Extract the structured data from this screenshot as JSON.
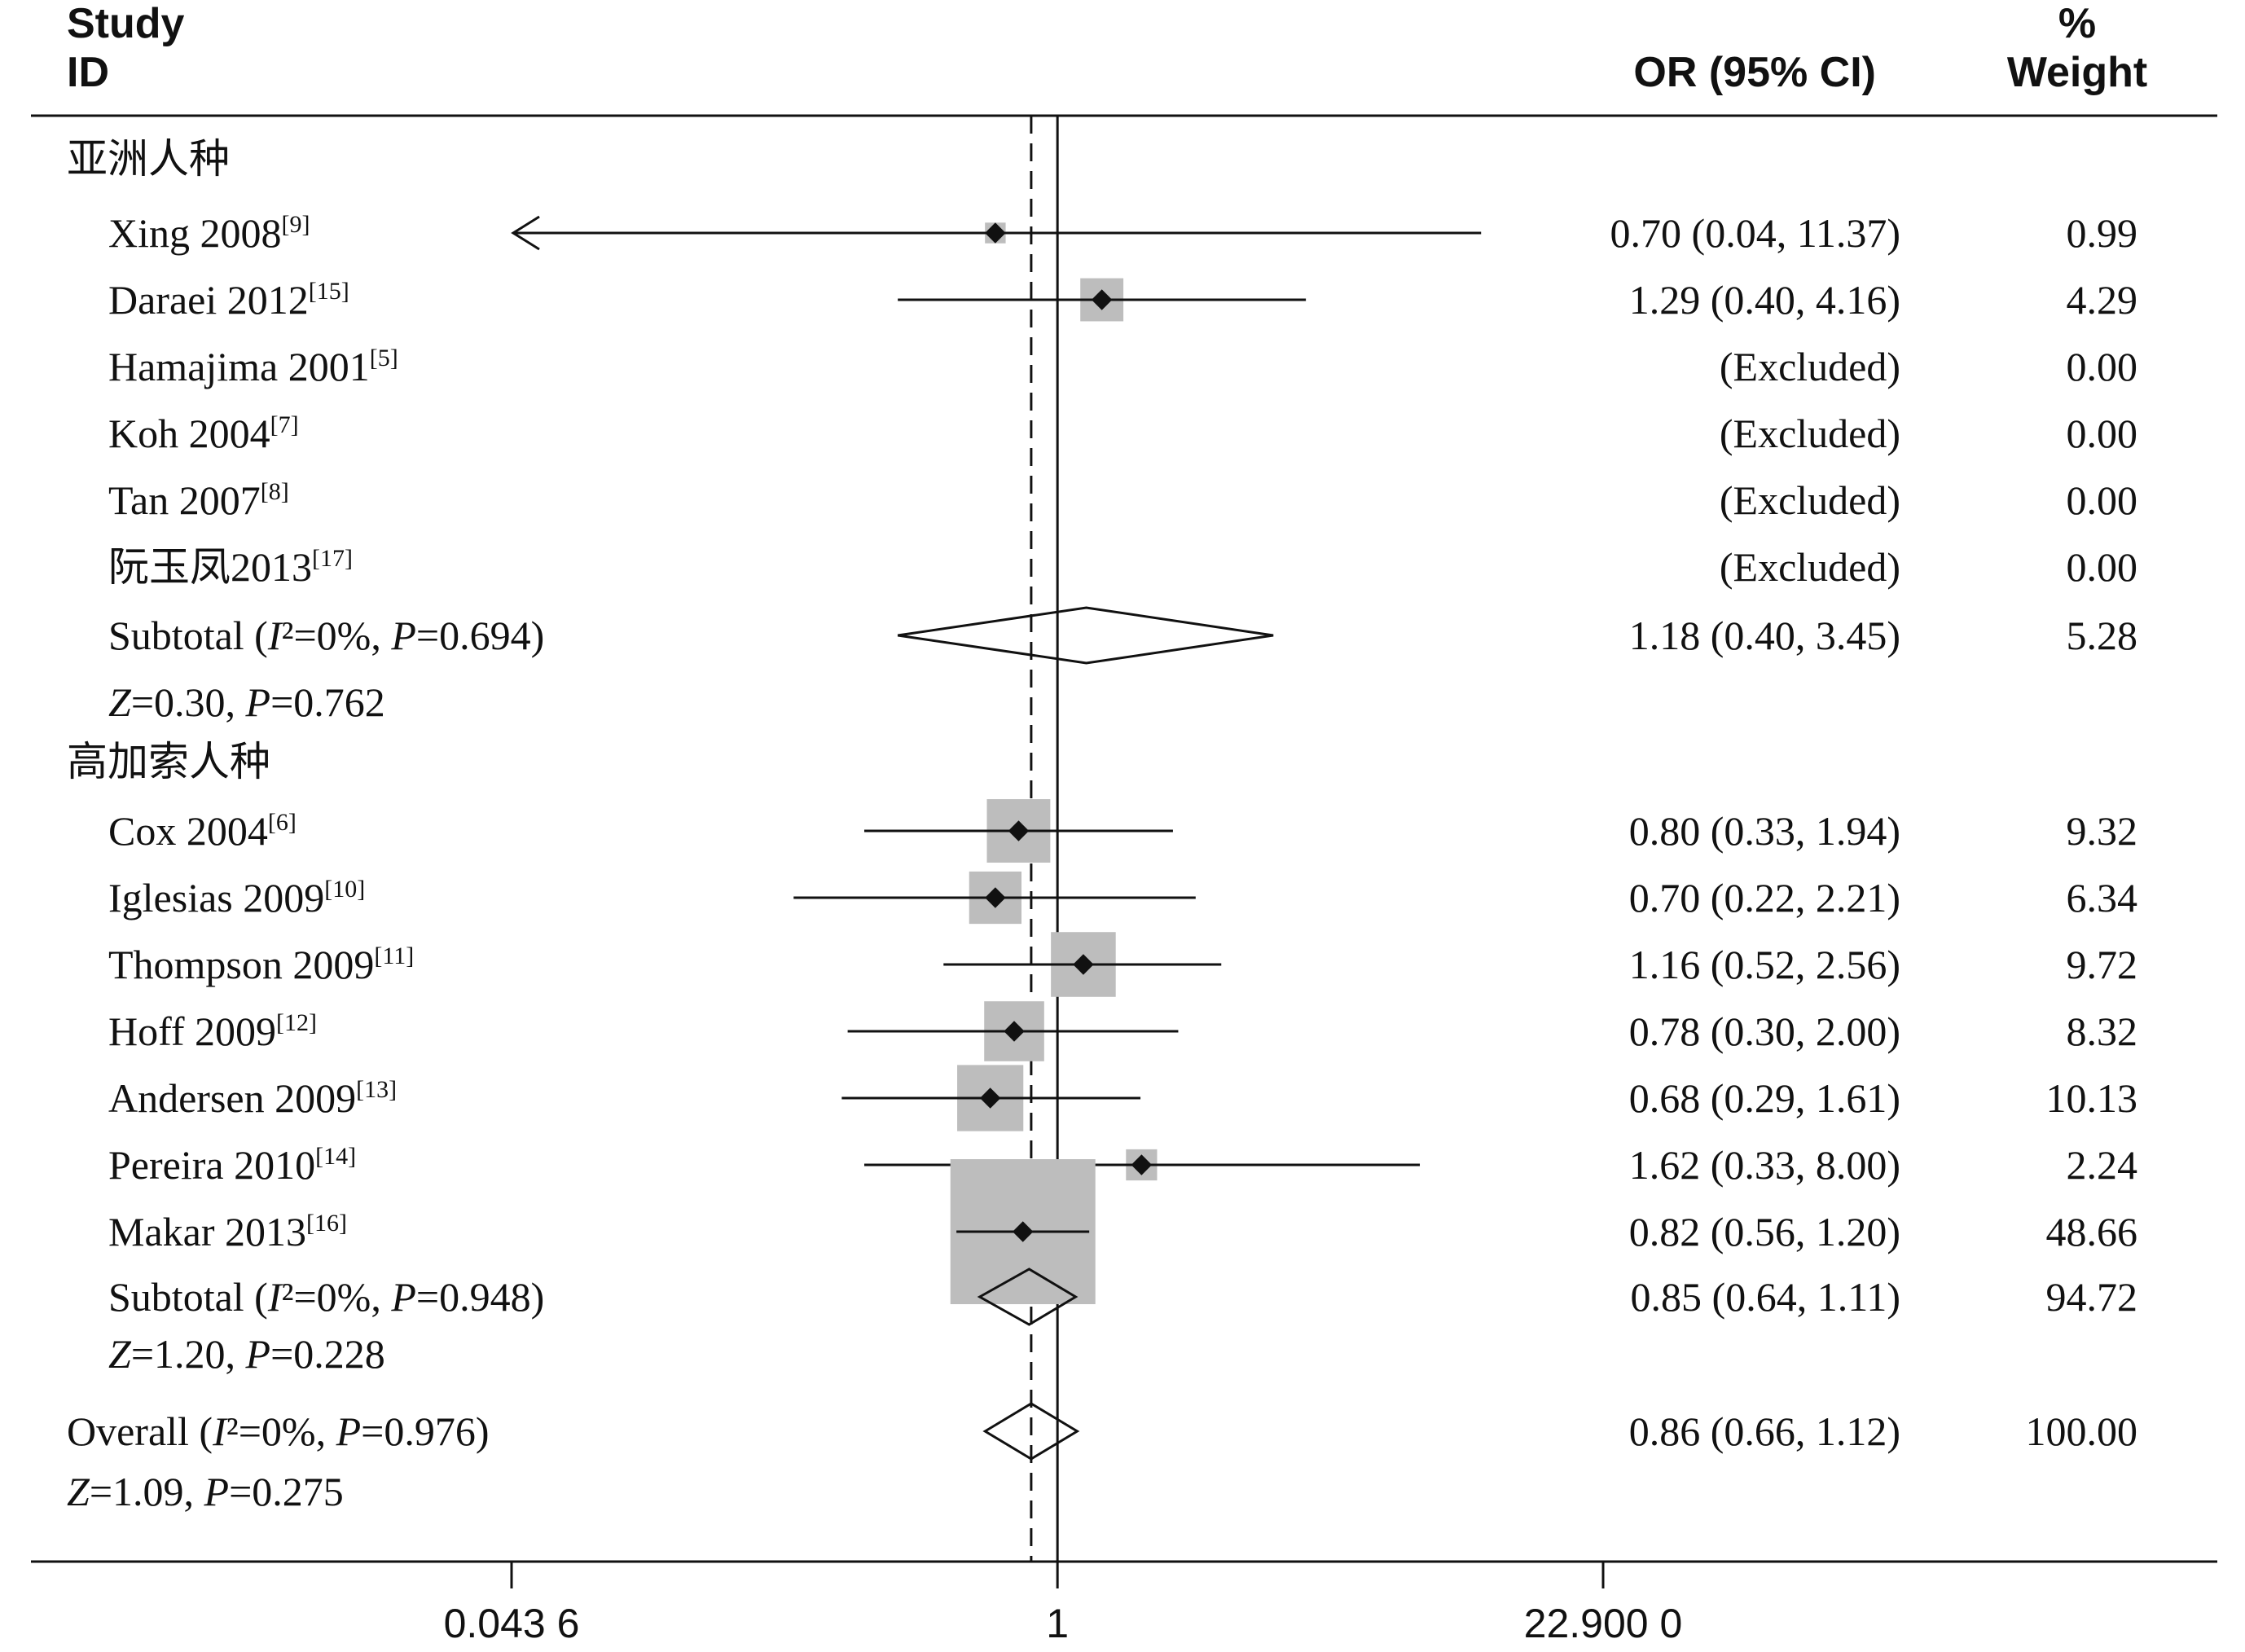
{
  "chart_data": {
    "type": "forest",
    "header": {
      "study_line1": "Study",
      "study_line2": "ID",
      "or_header": "OR (95% CI)",
      "weight_line1": "%",
      "weight_line2": "Weight"
    },
    "scale": "log",
    "xlim": [
      0.0436,
      22.9
    ],
    "x_ticks": [
      {
        "value": 0.0436,
        "label": "0.043 6"
      },
      {
        "value": 1,
        "label": "1"
      },
      {
        "value": 22.9,
        "label": "22.900 0"
      }
    ],
    "null_line": 1,
    "overall_line": 0.86,
    "rows": [
      {
        "kind": "group",
        "label": "亚洲人种"
      },
      {
        "kind": "study",
        "name": "Xing 2008",
        "ref": "[9]",
        "or": 0.7,
        "lo": 0.04,
        "hi": 11.37,
        "ci_text": "0.70 (0.04, 11.37)",
        "weight": 0.99,
        "weight_text": "0.99",
        "arrow_left": true
      },
      {
        "kind": "study",
        "name": "Daraei 2012",
        "ref": "[15]",
        "or": 1.29,
        "lo": 0.4,
        "hi": 4.16,
        "ci_text": "1.29 (0.40, 4.16)",
        "weight": 4.29,
        "weight_text": "4.29"
      },
      {
        "kind": "excluded",
        "name": "Hamajima 2001",
        "ref": "[5]",
        "ci_text": "(Excluded)",
        "weight_text": "0.00"
      },
      {
        "kind": "excluded",
        "name": "Koh 2004",
        "ref": "[7]",
        "ci_text": "(Excluded)",
        "weight_text": "0.00"
      },
      {
        "kind": "excluded",
        "name": "Tan 2007",
        "ref": "[8]",
        "ci_text": "(Excluded)",
        "weight_text": "0.00"
      },
      {
        "kind": "excluded",
        "name": "阮玉凤2013",
        "ref": "[17]",
        "ci_text": "(Excluded)",
        "weight_text": "0.00"
      },
      {
        "kind": "subtotal",
        "label_a": "Subtotal (",
        "label_b": "I",
        "label_c": "²=0%, ",
        "label_d": "P",
        "label_e": "=0.694)",
        "or": 1.18,
        "lo": 0.4,
        "hi": 3.45,
        "ci_text": "1.18 (0.40, 3.45)",
        "weight_text": "5.28"
      },
      {
        "kind": "ztest",
        "label_a": "Z",
        "label_b": "=0.30, ",
        "label_c": "P",
        "label_d": "=0.762"
      },
      {
        "kind": "group",
        "label": "高加索人种"
      },
      {
        "kind": "study",
        "name": "Cox 2004",
        "ref": "[6]",
        "or": 0.8,
        "lo": 0.33,
        "hi": 1.94,
        "ci_text": "0.80 (0.33, 1.94)",
        "weight": 9.32,
        "weight_text": "9.32"
      },
      {
        "kind": "study",
        "name": "Iglesias 2009",
        "ref": "[10]",
        "or": 0.7,
        "lo": 0.22,
        "hi": 2.21,
        "ci_text": "0.70 (0.22, 2.21)",
        "weight": 6.34,
        "weight_text": "6.34"
      },
      {
        "kind": "study",
        "name": "Thompson 2009",
        "ref": "[11]",
        "or": 1.16,
        "lo": 0.52,
        "hi": 2.56,
        "ci_text": "1.16 (0.52, 2.56)",
        "weight": 9.72,
        "weight_text": "9.72"
      },
      {
        "kind": "study",
        "name": "Hoff 2009",
        "ref": "[12]",
        "or": 0.78,
        "lo": 0.3,
        "hi": 2.0,
        "ci_text": "0.78 (0.30, 2.00)",
        "weight": 8.32,
        "weight_text": "8.32"
      },
      {
        "kind": "study",
        "name": "Andersen 2009",
        "ref": "[13]",
        "or": 0.68,
        "lo": 0.29,
        "hi": 1.61,
        "ci_text": "0.68 (0.29, 1.61)",
        "weight": 10.13,
        "weight_text": "10.13"
      },
      {
        "kind": "study",
        "name": "Pereira 2010",
        "ref": "[14]",
        "or": 1.62,
        "lo": 0.33,
        "hi": 8.0,
        "ci_text": "1.62 (0.33, 8.00)",
        "weight": 2.24,
        "weight_text": "2.24"
      },
      {
        "kind": "study",
        "name": "Makar 2013",
        "ref": "[16]",
        "or": 0.82,
        "lo": 0.56,
        "hi": 1.2,
        "ci_text": "0.82 (0.56, 1.20)",
        "weight": 48.66,
        "weight_text": "48.66"
      },
      {
        "kind": "subtotal",
        "label_a": "Subtotal (",
        "label_b": "I",
        "label_c": "²=0%, ",
        "label_d": "P",
        "label_e": "=0.948)",
        "or": 0.85,
        "lo": 0.64,
        "hi": 1.11,
        "ci_text": "0.85 (0.64, 1.11)",
        "weight_text": "94.72"
      },
      {
        "kind": "ztest",
        "label_a": "Z",
        "label_b": "=1.20, ",
        "label_c": "P",
        "label_d": "=0.228"
      },
      {
        "kind": "overall",
        "label_a": "Overall (",
        "label_b": "I",
        "label_c": "²=0%, ",
        "label_d": "P",
        "label_e": "=0.976)",
        "or": 0.86,
        "lo": 0.66,
        "hi": 1.12,
        "ci_text": "0.86 (0.66, 1.12)",
        "weight_text": "100.00"
      },
      {
        "kind": "ztest",
        "label_a": "Z",
        "label_b": "=1.09, ",
        "label_c": "P",
        "label_d": "=0.275"
      }
    ],
    "colors": {
      "box": "#bdbdbd",
      "line": "#111111"
    }
  }
}
